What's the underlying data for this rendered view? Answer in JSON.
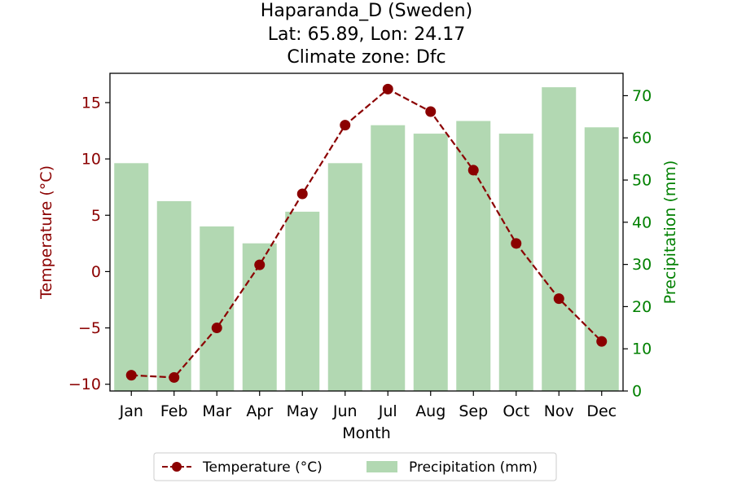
{
  "chart_data": {
    "type": "bar+line",
    "title_lines": [
      "Haparanda_D (Sweden)",
      "Lat: 65.89, Lon: 24.17",
      "Climate zone: Dfc"
    ],
    "xlabel": "Month",
    "ylabel_left": "Temperature (°C)",
    "ylabel_right": "Precipitation (mm)",
    "categories": [
      "Jan",
      "Feb",
      "Mar",
      "Apr",
      "May",
      "Jun",
      "Jul",
      "Aug",
      "Sep",
      "Oct",
      "Nov",
      "Dec"
    ],
    "temperature": {
      "name": "Temperature (°C)",
      "values": [
        -9.2,
        -9.4,
        -5.0,
        0.6,
        6.9,
        13.0,
        16.2,
        14.2,
        9.0,
        2.5,
        -2.4,
        -6.2
      ],
      "color": "#8b0000",
      "style": "dashed line with circle markers",
      "ylim": [
        -10.6,
        17.6
      ],
      "ticks": [
        -10,
        -5,
        0,
        5,
        10,
        15
      ],
      "tick_labels": [
        "−10",
        "−5",
        "0",
        "5",
        "10",
        "15"
      ]
    },
    "precipitation": {
      "name": "Precipitation (mm)",
      "values": [
        54,
        45,
        39,
        35,
        42.5,
        54,
        63,
        61,
        64,
        61,
        72,
        62.5
      ],
      "color": "#b2d8b2",
      "ylim": [
        0,
        75.3
      ],
      "ticks": [
        0,
        10,
        20,
        30,
        40,
        50,
        60,
        70
      ],
      "tick_labels": [
        "0",
        "10",
        "20",
        "30",
        "40",
        "50",
        "60",
        "70"
      ]
    },
    "left_axis_color": "#8b0000",
    "right_axis_color": "#008000",
    "grid": false,
    "legend_position": "bottom-center"
  }
}
